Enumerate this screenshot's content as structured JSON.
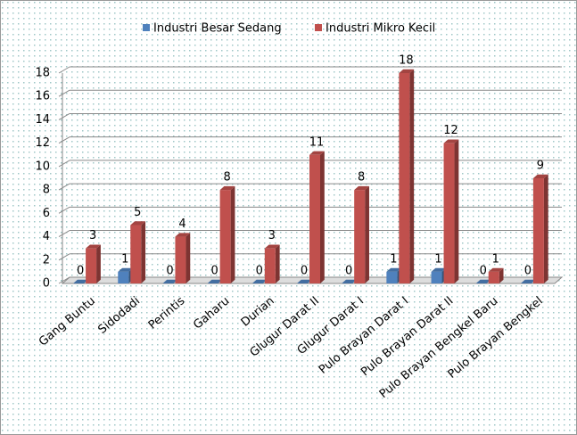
{
  "chart_data": {
    "type": "bar3d",
    "categories": [
      "Gang Buntu",
      "Sidodadi",
      "Perintis",
      "Gaharu",
      "Durian",
      "Glugur Darat II",
      "Glugur Darat I",
      "Pulo Brayan Darat I",
      "Pulo Brayan Darat II",
      "Pulo Brayan Bengkel Baru",
      "Pulo Brayan Bengkel"
    ],
    "series": [
      {
        "name": "Industri Besar Sedang",
        "color": "#4f81bd",
        "values": [
          0,
          1,
          0,
          0,
          0,
          0,
          0,
          1,
          1,
          0,
          0
        ]
      },
      {
        "name": "Industri Mikro Kecil",
        "color": "#c0504d",
        "values": [
          3,
          5,
          4,
          8,
          3,
          11,
          8,
          18,
          12,
          1,
          9
        ]
      }
    ],
    "ylim": [
      0,
      18
    ],
    "yticks": [
      0,
      2,
      4,
      6,
      8,
      10,
      12,
      14,
      16,
      18
    ],
    "grid": true,
    "legend": "top"
  }
}
